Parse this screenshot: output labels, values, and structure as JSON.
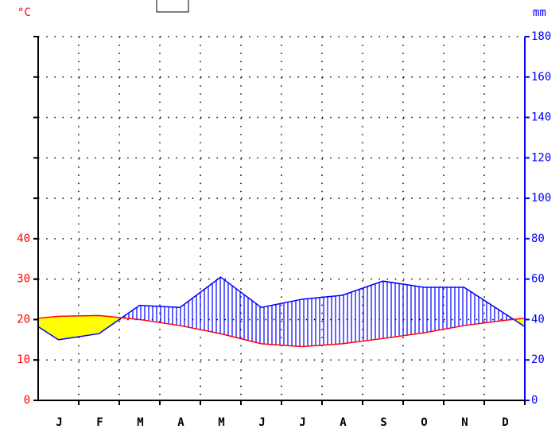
{
  "chart_data": {
    "type": "climate",
    "y_label": "°C",
    "y2_label": "mm",
    "categories": [
      "J",
      "F",
      "M",
      "A",
      "M",
      "J",
      "J",
      "A",
      "S",
      "O",
      "N",
      "D"
    ],
    "series": [
      {
        "name": "temperature",
        "color": "#ff0000",
        "values": [
          20.8,
          21,
          20,
          18.5,
          16.5,
          14,
          13.3,
          14,
          15.3,
          16.7,
          18.5,
          19.8
        ]
      },
      {
        "name": "precipitation",
        "color": "#0000ff",
        "axis": "y2",
        "values": [
          30,
          33,
          47,
          46,
          61,
          46,
          50,
          52,
          59,
          56,
          56,
          43
        ]
      }
    ],
    "dry_color": "#ffff00",
    "ylim": [
      0,
      90
    ],
    "yticks": [
      0,
      10,
      20,
      30,
      40
    ],
    "y2lim": [
      0,
      180
    ],
    "y2ticks": [
      0,
      20,
      40,
      60,
      80,
      100,
      120,
      140,
      160,
      180
    ],
    "grid": true
  }
}
